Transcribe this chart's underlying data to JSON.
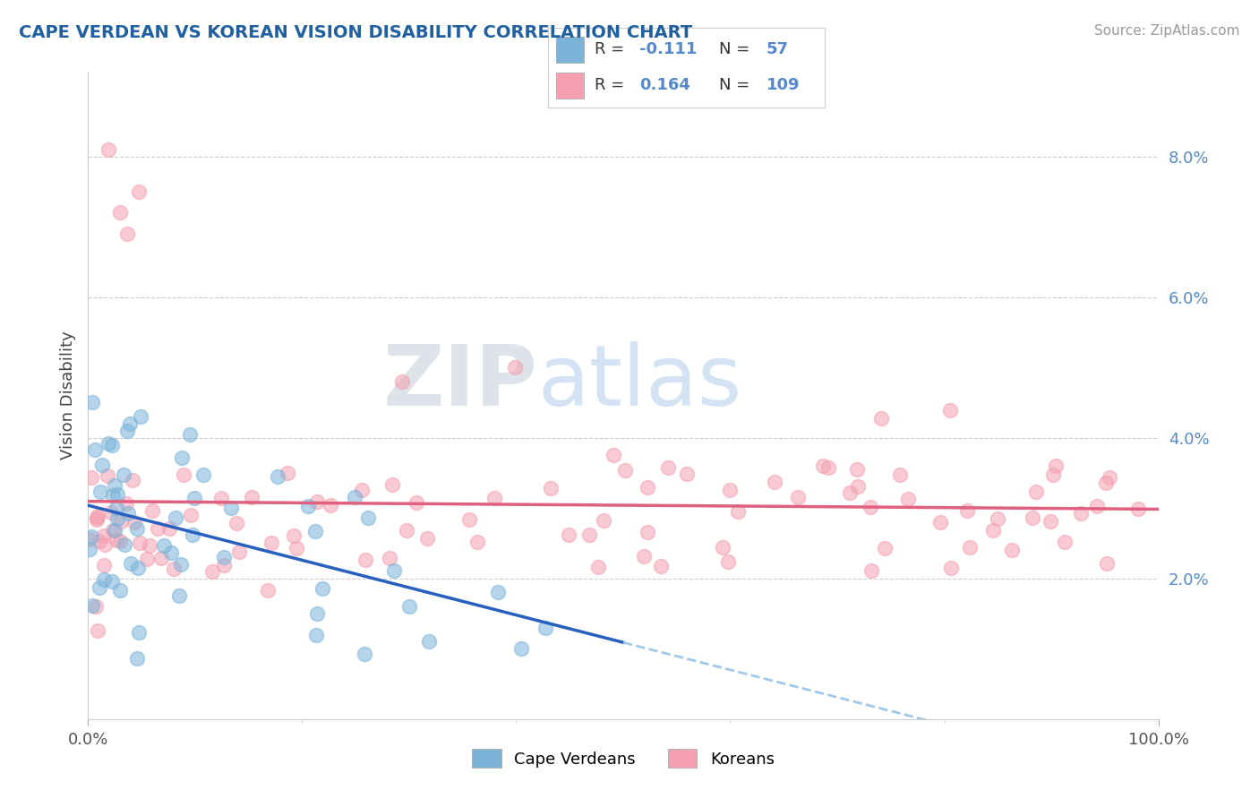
{
  "title": "CAPE VERDEAN VS KOREAN VISION DISABILITY CORRELATION CHART",
  "source": "Source: ZipAtlas.com",
  "ylabel": "Vision Disability",
  "cape_verdean_R": -0.111,
  "cape_verdean_N": 57,
  "korean_R": 0.164,
  "korean_N": 109,
  "xlim": [
    0,
    100
  ],
  "ylim": [
    0,
    9.2
  ],
  "yticks": [
    2.0,
    4.0,
    6.0,
    8.0
  ],
  "watermark_zip": "ZIP",
  "watermark_atlas": "atlas",
  "blue_scatter_color": "#7bb3d9",
  "pink_scatter_color": "#f4a0b0",
  "blue_line_color": "#2860c0",
  "pink_line_color": "#e06080",
  "dashed_line_color": "#a0c8e8",
  "title_color": "#2060a0",
  "background_color": "#ffffff",
  "grid_color": "#cccccc",
  "tick_color": "#5588cc",
  "source_color": "#999999"
}
